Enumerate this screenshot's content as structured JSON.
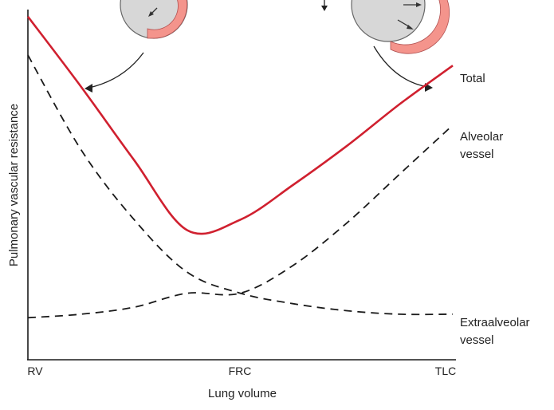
{
  "chart_data": {
    "type": "line",
    "title": "",
    "xlabel": "Lung volume",
    "ylabel": "Pulmonary vascular resistance",
    "categories": [
      "RV",
      "FRC",
      "TLC"
    ],
    "x_domain": [
      0,
      2
    ],
    "y_domain": [
      0,
      100
    ],
    "grid": false,
    "legend": "none",
    "colors": {
      "Total": "#d0202f",
      "axis": "#1a1a1a",
      "dashed": "#1a1a1a"
    },
    "series": [
      {
        "name": "Total",
        "style": "solid",
        "x": [
          0,
          0.25,
          0.5,
          0.75,
          1.0,
          1.25,
          1.5,
          1.75,
          2.0
        ],
        "y": [
          98,
          78,
          57,
          37,
          40,
          50,
          61,
          73,
          84
        ]
      },
      {
        "name": "Alveolar vessel",
        "style": "dashed",
        "x": [
          0,
          0.25,
          0.5,
          0.75,
          1.0,
          1.25,
          1.5,
          1.75,
          2.0
        ],
        "y": [
          12,
          13,
          15,
          19,
          19,
          27,
          39,
          53,
          67
        ]
      },
      {
        "name": "Extraalveolar vessel",
        "style": "dashed",
        "x": [
          0,
          0.25,
          0.5,
          0.75,
          1.0,
          1.25,
          1.5,
          1.75,
          2.0
        ],
        "y": [
          87,
          60,
          40,
          25,
          19,
          16,
          14,
          13,
          13
        ]
      }
    ],
    "series_labels": {
      "total": "Total",
      "alveolar_line1": "Alveolar",
      "alveolar_line2": "vessel",
      "extra_line1": "Extraalveolar",
      "extra_line2": "vessel"
    },
    "insets": [
      {
        "name": "low-volume-vessel-diagram",
        "position": "top-left",
        "points_to": "RV end of Total curve"
      },
      {
        "name": "high-volume-vessel-diagram",
        "position": "top-right",
        "points_to": "TLC end of Total curve"
      }
    ]
  }
}
